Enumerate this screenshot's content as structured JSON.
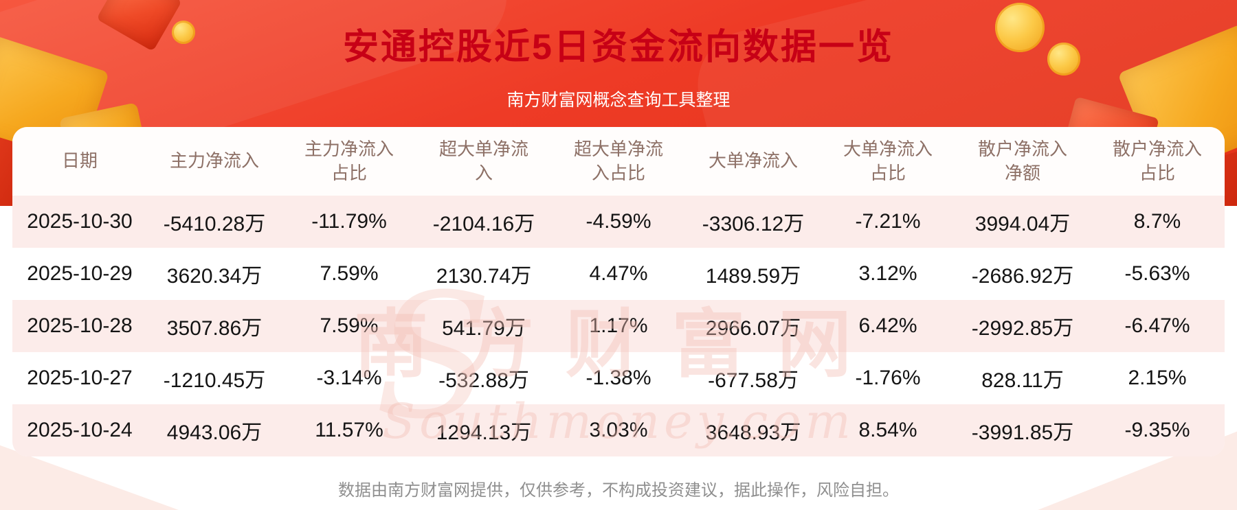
{
  "header": {
    "title": "安通控股近5日资金流向数据一览",
    "subtitle": "南方财富网概念查询工具整理"
  },
  "watermark": {
    "cn": "南方财富网",
    "en": "Southmoney.com",
    "initial": "S"
  },
  "footer": {
    "disclaimer": "数据由南方财富网提供，仅供参考，不构成投资建议，据此操作，风险自担。"
  },
  "colors": {
    "background_red": "#ee3b26",
    "title_red": "#c70016",
    "row_alt_pink": "#fcecea",
    "header_text": "#8d7066",
    "cell_text": "#141414",
    "footer_text": "#8f8f8f"
  },
  "chart_data": {
    "type": "table",
    "title": "安通控股近5日资金流向数据一览",
    "columns": [
      "日期",
      "主力净流入",
      "主力净流入占比",
      "超大单净流入",
      "超大单净流入占比",
      "大单净流入",
      "大单净流入占比",
      "散户净流入净额",
      "散户净流入占比"
    ],
    "rows": [
      [
        "2025-10-30",
        "-5410.28万",
        "-11.79%",
        "-2104.16万",
        "-4.59%",
        "-3306.12万",
        "-7.21%",
        "3994.04万",
        "8.7%"
      ],
      [
        "2025-10-29",
        "3620.34万",
        "7.59%",
        "2130.74万",
        "4.47%",
        "1489.59万",
        "3.12%",
        "-2686.92万",
        "-5.63%"
      ],
      [
        "2025-10-28",
        "3507.86万",
        "7.59%",
        "541.79万",
        "1.17%",
        "2966.07万",
        "6.42%",
        "-2992.85万",
        "-6.47%"
      ],
      [
        "2025-10-27",
        "-1210.45万",
        "-3.14%",
        "-532.88万",
        "-1.38%",
        "-677.58万",
        "-1.76%",
        "828.11万",
        "2.15%"
      ],
      [
        "2025-10-24",
        "4943.06万",
        "11.57%",
        "1294.13万",
        "3.03%",
        "3648.93万",
        "8.54%",
        "-3991.85万",
        "-9.35%"
      ]
    ]
  }
}
